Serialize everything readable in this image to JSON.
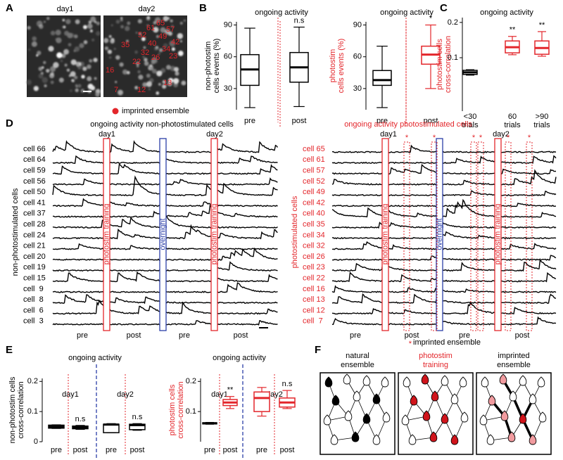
{
  "figure": {
    "panel_labels": [
      "A",
      "B",
      "C",
      "D",
      "E",
      "F"
    ]
  },
  "A": {
    "image_titles": [
      "day1",
      "day2"
    ],
    "cell_labels": [
      "65",
      "61",
      "57",
      "52",
      "49",
      "42",
      "40",
      "35",
      "34",
      "32",
      "26",
      "23",
      "22",
      "16",
      "13",
      "12",
      "7"
    ],
    "legend": "imprinted ensemble",
    "legend_color": "#e3262b"
  },
  "chart_data": [
    {
      "type": "box",
      "title": "ongoing activity",
      "ylabel": [
        "non-photostim",
        "cells events (%)"
      ],
      "ylabel_color": "#000000",
      "categories": [
        "pre",
        "post"
      ],
      "ylim": [
        10,
        93
      ],
      "yticks": [
        30,
        60,
        90
      ],
      "annotations": [
        null,
        "n.s"
      ],
      "boxes": [
        {
          "min": 12,
          "q1": 33,
          "median": 48,
          "q3": 62,
          "max": 87,
          "color": "#000000"
        },
        {
          "min": 13,
          "q1": 36,
          "median": 50,
          "q3": 64,
          "max": 88,
          "color": "#000000"
        }
      ]
    },
    {
      "type": "box",
      "title": "ongoing activity",
      "ylabel": [
        "photostim",
        "cells events (%)"
      ],
      "ylabel_color": "#e3262b",
      "categories": [
        "pre",
        "post"
      ],
      "ylim": [
        10,
        93
      ],
      "yticks": [
        30,
        60,
        90
      ],
      "annotations": [
        null,
        "*"
      ],
      "boxes": [
        {
          "min": 12,
          "q1": 33,
          "median": 38,
          "q3": 47,
          "max": 70,
          "color": "#000000"
        },
        {
          "min": 30,
          "q1": 53,
          "median": 62,
          "q3": 70,
          "max": 90,
          "color": "#e3262b"
        }
      ]
    },
    {
      "type": "box",
      "title": "ongoing activity",
      "ylabel": [
        "photostim cells",
        "cross-correlation"
      ],
      "ylabel_color": "#e3262b",
      "categories": [
        [
          "<30",
          "trials"
        ],
        [
          "60",
          "trials"
        ],
        [
          ">90",
          "trials"
        ]
      ],
      "log": true,
      "ylim": [
        0.035,
        0.22
      ],
      "yticks": [
        0.1,
        0.2
      ],
      "annotations": [
        null,
        "**",
        "**"
      ],
      "boxes": [
        {
          "min": 0.071,
          "q1": 0.072,
          "median": 0.075,
          "q3": 0.078,
          "max": 0.079,
          "color": "#000000"
        },
        {
          "min": 0.106,
          "q1": 0.11,
          "median": 0.123,
          "q3": 0.139,
          "max": 0.152,
          "color": "#e3262b"
        },
        {
          "min": 0.103,
          "q1": 0.107,
          "median": 0.121,
          "q3": 0.139,
          "max": 0.167,
          "color": "#e3262b"
        }
      ]
    },
    {
      "type": "box",
      "subtitle": "day1",
      "ylabel": [
        "non-photostim cells",
        "cross-correlation"
      ],
      "ylabel_color": "#000000",
      "categories": [
        "pre",
        "post"
      ],
      "ylim": [
        0,
        0.21
      ],
      "yticks": [
        0,
        0.1,
        0.2
      ],
      "annotations": [
        null,
        "n.s"
      ],
      "boxes": [
        {
          "min": 0.044,
          "q1": 0.045,
          "median": 0.05,
          "q3": 0.055,
          "max": 0.056,
          "color": "#000000"
        },
        {
          "min": 0.041,
          "q1": 0.043,
          "median": 0.047,
          "q3": 0.052,
          "max": 0.054,
          "color": "#000000"
        }
      ]
    },
    {
      "type": "box",
      "subtitle": "day2",
      "categories": [
        "pre",
        "post"
      ],
      "ylim": [
        0,
        0.21
      ],
      "annotations": [
        null,
        "n.s"
      ],
      "boxes": [
        {
          "min": 0.03,
          "q1": 0.03,
          "median": 0.057,
          "q3": 0.058,
          "max": 0.06,
          "color": "#000000"
        },
        {
          "min": 0.038,
          "q1": 0.04,
          "median": 0.055,
          "q3": 0.058,
          "max": 0.06,
          "color": "#000000"
        }
      ]
    },
    {
      "type": "box",
      "subtitle": "day1",
      "ylabel": [
        "photostim cells",
        "cross-correlation"
      ],
      "ylabel_color": "#e3262b",
      "categories": [
        "pre",
        "post"
      ],
      "ylim": [
        0,
        0.21
      ],
      "yticks": [
        0.1,
        0.2
      ],
      "annotations": [
        null,
        "**"
      ],
      "boxes": [
        {
          "min": 0.058,
          "q1": 0.059,
          "median": 0.061,
          "q3": 0.063,
          "max": 0.064,
          "color": "#000000"
        },
        {
          "min": 0.11,
          "q1": 0.12,
          "median": 0.13,
          "q3": 0.14,
          "max": 0.15,
          "color": "#e3262b"
        }
      ]
    },
    {
      "type": "box",
      "subtitle": "day2",
      "categories": [
        "pre",
        "post"
      ],
      "ylim": [
        0,
        0.21
      ],
      "annotations": [
        null,
        "n.s"
      ],
      "boxes": [
        {
          "min": 0.085,
          "q1": 0.1,
          "median": 0.145,
          "q3": 0.165,
          "max": 0.18,
          "color": "#e3262b"
        },
        {
          "min": 0.11,
          "q1": 0.115,
          "median": 0.13,
          "q3": 0.145,
          "max": 0.17,
          "color": "#e3262b"
        }
      ]
    }
  ],
  "E": {
    "titles": [
      "ongoing activity",
      "ongoing activity"
    ]
  },
  "D": {
    "left": {
      "title": "ongoing activity non-photostimulated cells",
      "title_color": "#000000",
      "day_labels": [
        "day1",
        "day2"
      ],
      "ylabel": "non-photostimulated cells",
      "cells": [
        "cell 66",
        "cell 64",
        "cell 59",
        "cell 56",
        "cell 50",
        "cell 41",
        "cell 37",
        "cell 28",
        "cell 24",
        "cell 21",
        "cell 20",
        "cell 19",
        "cell 15",
        "cell  9",
        "cell  8",
        "cell  6",
        "cell  3"
      ],
      "events": [
        "photostim training",
        "overnight",
        "photostim training"
      ],
      "epochs": [
        "pre",
        "post",
        "pre",
        "post"
      ]
    },
    "right": {
      "title": "ongoing activity photostimulated cells",
      "title_color": "#e3262b",
      "day_labels": [
        "day1",
        "day2"
      ],
      "ylabel": "photostimulated cells",
      "cells": [
        "cell 65",
        "cell 61",
        "cell 57",
        "cell 52",
        "cell 49",
        "cell 42",
        "cell 40",
        "cell 35",
        "cell 34",
        "cell 32",
        "cell 26",
        "cell 23",
        "cell 22",
        "cell 16",
        "cell 13",
        "cell 12",
        "cell  7"
      ],
      "events": [
        "photostim training",
        "overnight",
        "photostim training"
      ],
      "epochs": [
        "pre",
        "post",
        "pre",
        "post"
      ],
      "stars": [
        "*",
        "*",
        "*",
        "*",
        "*",
        "*"
      ],
      "legend_marker": "*",
      "legend": "imprinted ensemble"
    }
  },
  "F": {
    "titles": [
      [
        "natural",
        "ensemble"
      ],
      [
        "photostim",
        "training"
      ],
      [
        "imprinted",
        "ensemble"
      ]
    ],
    "title_colors": [
      "#000000",
      "#e3262b",
      "#000000"
    ]
  }
}
